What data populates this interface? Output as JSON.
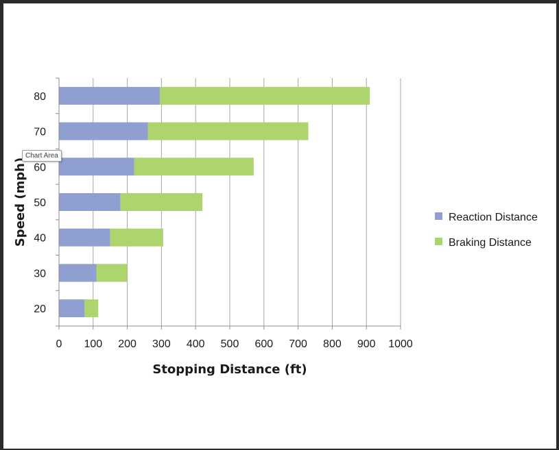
{
  "chart_data": {
    "type": "bar",
    "orientation": "horizontal",
    "stacked": true,
    "categories": [
      "20",
      "30",
      "40",
      "50",
      "60",
      "70",
      "80"
    ],
    "series": [
      {
        "name": "Reaction Distance",
        "color": "#8E9FD0",
        "values": [
          75,
          110,
          150,
          180,
          220,
          260,
          295
        ]
      },
      {
        "name": "Braking Distance",
        "color": "#AED46E",
        "values": [
          40,
          90,
          155,
          240,
          350,
          470,
          615
        ]
      }
    ],
    "xlabel": "Stopping Distance (ft)",
    "ylabel": "Speed (mph)",
    "xlim": [
      0,
      1000
    ],
    "xticks": [
      "0",
      "100",
      "200",
      "300",
      "400",
      "500",
      "600",
      "700",
      "800",
      "900",
      "1000"
    ],
    "grid": true,
    "legend_position": "right"
  },
  "tooltip": "Chart Area"
}
